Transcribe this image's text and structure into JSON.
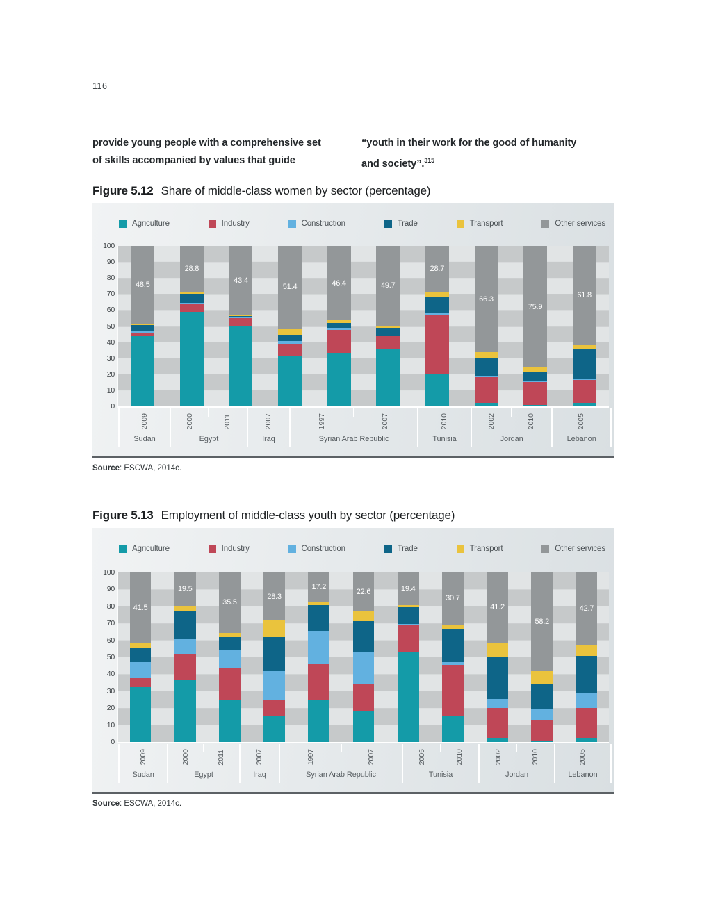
{
  "page": {
    "number": "116"
  },
  "paragraph": {
    "left_lines": [
      "provide young people with a comprehensive set",
      "of skills accompanied by values that guide"
    ],
    "right_line1": "“youth in their work for the good of humanity",
    "right_line2": "and society”.",
    "footnote": "315"
  },
  "sectors": [
    {
      "name": "Agriculture",
      "color": "#149ba8"
    },
    {
      "name": "Industry",
      "color": "#bf4757"
    },
    {
      "name": "Construction",
      "color": "#62b1e0"
    },
    {
      "name": "Trade",
      "color": "#0e6588"
    },
    {
      "name": "Transport",
      "color": "#eac33d"
    },
    {
      "name": "Other services",
      "color": "#939799"
    }
  ],
  "figures": [
    {
      "label": "Figure 5.12",
      "title": "Share of middle-class women by sector (percentage)",
      "source_label": "Source",
      "source_rest": ": ESCWA, 2014c."
    },
    {
      "label": "Figure 5.13",
      "title": "Employment of middle-class youth by sector (percentage)",
      "source_label": "Source",
      "source_rest": ": ESCWA, 2014c."
    }
  ],
  "chart_style": {
    "checker_light": "#e1e4e5",
    "checker_medium": "#c6c9ca",
    "bar_label_color": "#ffffff"
  },
  "chart_data": [
    {
      "type": "bar",
      "stacked": true,
      "title": "Share of middle-class women by sector (percentage)",
      "ylim": [
        0,
        100
      ],
      "yticks": [
        0,
        10,
        20,
        30,
        40,
        50,
        60,
        70,
        80,
        90,
        100
      ],
      "legend_position": "top",
      "grid": "striped-checkerboard",
      "groups": [
        {
          "country": "Sudan",
          "years": [
            "2009"
          ]
        },
        {
          "country": "Egypt",
          "years": [
            "2000",
            "2011"
          ]
        },
        {
          "country": "Iraq",
          "years": [
            "2007"
          ]
        },
        {
          "country": "Syrian Arab Republic",
          "years": [
            "1997",
            "2007"
          ]
        },
        {
          "country": "Tunisia",
          "years": [
            "2010"
          ]
        },
        {
          "country": "Jordan",
          "years": [
            "2002",
            "2010"
          ]
        },
        {
          "country": "Lebanon",
          "years": [
            "2005"
          ]
        }
      ],
      "series": [
        {
          "name": "Agriculture",
          "values": [
            44,
            59,
            50,
            31,
            33.5,
            36,
            20,
            2,
            1,
            2
          ]
        },
        {
          "name": "Industry",
          "values": [
            2,
            5,
            5,
            8,
            14,
            7.5,
            37,
            16.5,
            14,
            14.5
          ]
        },
        {
          "name": "Construction",
          "values": [
            1,
            0.5,
            0.5,
            1.6,
            1.6,
            0.8,
            0.8,
            0.7,
            0.6,
            0.7
          ]
        },
        {
          "name": "Trade",
          "values": [
            3.5,
            5.7,
            0.6,
            4,
            3,
            4.5,
            10.5,
            10.5,
            6,
            18.5
          ]
        },
        {
          "name": "Transport",
          "values": [
            1,
            1,
            0.5,
            4,
            1.5,
            1.5,
            3,
            4,
            2.5,
            2.5
          ]
        },
        {
          "name": "Other services",
          "values": [
            48.5,
            28.8,
            43.4,
            51.4,
            46.4,
            49.7,
            28.7,
            66.3,
            75.9,
            61.8
          ]
        }
      ],
      "bar_labels": [
        48.5,
        28.8,
        43.4,
        51.4,
        46.4,
        49.7,
        28.7,
        66.3,
        75.9,
        61.8
      ]
    },
    {
      "type": "bar",
      "stacked": true,
      "title": "Employment of middle-class youth by sector (percentage)",
      "ylim": [
        0,
        100
      ],
      "yticks": [
        0,
        10,
        20,
        30,
        40,
        50,
        60,
        70,
        80,
        90,
        100
      ],
      "legend_position": "top",
      "grid": "striped-checkerboard",
      "groups": [
        {
          "country": "Sudan",
          "years": [
            "2009"
          ]
        },
        {
          "country": "Egypt",
          "years": [
            "2000",
            "2011"
          ]
        },
        {
          "country": "Iraq",
          "years": [
            "2007"
          ]
        },
        {
          "country": "Syrian Arab Republic",
          "years": [
            "1997",
            "2007"
          ]
        },
        {
          "country": "Tunisia",
          "years": [
            "2005",
            "2010"
          ]
        },
        {
          "country": "Jordan",
          "years": [
            "2002",
            "2010"
          ]
        },
        {
          "country": "Lebanon",
          "years": [
            "2005"
          ]
        }
      ],
      "series": [
        {
          "name": "Agriculture",
          "values": [
            32.5,
            36.5,
            25,
            15.5,
            24.5,
            18,
            53,
            15,
            2,
            1,
            2.5
          ]
        },
        {
          "name": "Industry",
          "values": [
            5,
            15,
            18.5,
            9,
            21.5,
            16.5,
            16,
            30.5,
            18,
            12,
            17.5
          ]
        },
        {
          "name": "Construction",
          "values": [
            9.5,
            9,
            11,
            17.5,
            19,
            18.5,
            0.6,
            1.5,
            5.5,
            6.5,
            8.5
          ]
        },
        {
          "name": "Trade",
          "values": [
            8.5,
            16.5,
            7.5,
            20,
            15.8,
            18.5,
            10,
            19.5,
            24.5,
            14.5,
            22
          ]
        },
        {
          "name": "Transport",
          "values": [
            3,
            3.5,
            2.5,
            9.7,
            2,
            5.9,
            1,
            2.8,
            8.8,
            7.8,
            6.8
          ]
        },
        {
          "name": "Other services",
          "values": [
            41.5,
            19.5,
            35.5,
            28.3,
            17.2,
            22.6,
            19.4,
            30.7,
            41.2,
            58.2,
            42.7
          ]
        }
      ],
      "bar_labels": [
        41.5,
        19.5,
        35.5,
        28.3,
        17.2,
        22.6,
        19.4,
        30.7,
        41.2,
        58.2,
        42.7
      ]
    }
  ]
}
